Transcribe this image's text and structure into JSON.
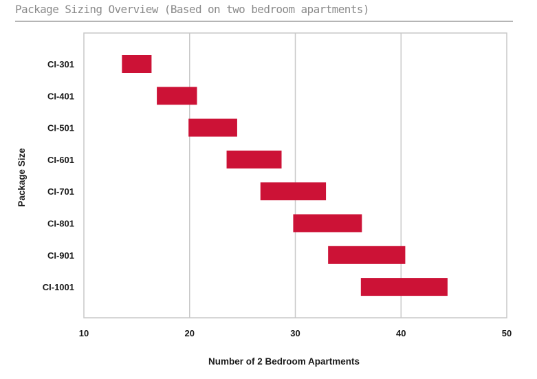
{
  "page": {
    "title": "Package Sizing Overview (Based on two bedroom apartments)"
  },
  "colors": {
    "bar": "#cc1236",
    "grid": "#c8c8c8",
    "frame": "#c8c8c8",
    "title": "#8a8a8a"
  },
  "chart_data": {
    "type": "bar",
    "orientation": "horizontal-range",
    "title": "Package Sizing Overview (Based on two bedroom apartments)",
    "xlabel": "Number of 2 Bedroom Apartments",
    "ylabel": "Package Size",
    "xlim": [
      10,
      50
    ],
    "xticks": [
      "10",
      "20",
      "30",
      "40",
      "50"
    ],
    "grid": true,
    "categories": [
      "CI-301",
      "CI-401",
      "CI-501",
      "CI-601",
      "CI-701",
      "CI-801",
      "CI-901",
      "CI-1001"
    ],
    "ranges": [
      [
        13.6,
        16.4
      ],
      [
        16.9,
        20.7
      ],
      [
        19.9,
        24.5
      ],
      [
        23.5,
        28.7
      ],
      [
        26.7,
        32.9
      ],
      [
        29.8,
        36.3
      ],
      [
        33.1,
        40.4
      ],
      [
        36.2,
        44.4
      ]
    ]
  }
}
